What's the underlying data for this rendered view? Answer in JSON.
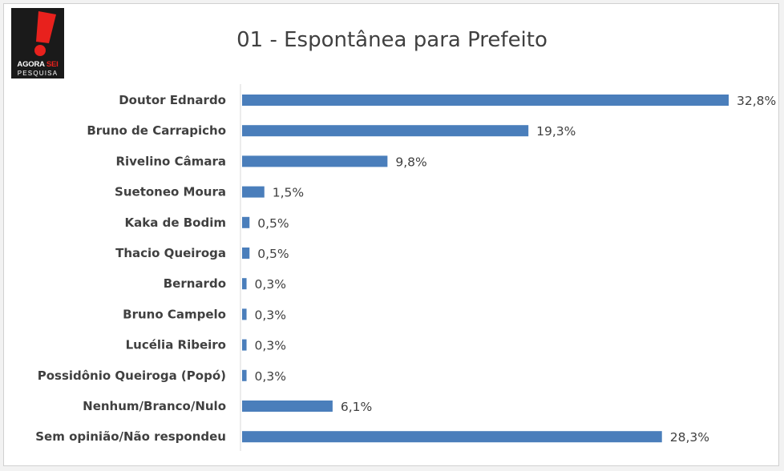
{
  "logo": {
    "text_primary": "AGORA",
    "text_accent": "SEI",
    "text_secondary": "PESQUISA",
    "colors": {
      "background": "#1a1a1a",
      "accent": "#e8211d"
    }
  },
  "chart_data": {
    "type": "bar",
    "orientation": "horizontal",
    "title": "01 - Espontânea para Prefeito",
    "categories": [
      "Doutor Ednardo",
      "Bruno de Carrapicho",
      "Rivelino Câmara",
      "Suetoneo Moura",
      "Kaka de Bodim",
      "Thacio Queiroga",
      "Bernardo",
      "Bruno Campelo",
      "Lucélia Ribeiro",
      "Possidônio Queiroga (Popó)",
      "Nenhum/Branco/Nulo",
      "Sem opinião/Não respondeu"
    ],
    "values": [
      32.8,
      19.3,
      9.8,
      1.5,
      0.5,
      0.5,
      0.3,
      0.3,
      0.3,
      0.3,
      6.1,
      28.3
    ],
    "value_labels": [
      "32,8%",
      "19,3%",
      "9,8%",
      "1,5%",
      "0,5%",
      "0,5%",
      "0,3%",
      "0,3%",
      "0,3%",
      "0,3%",
      "6,1%",
      "28,3%"
    ],
    "xlim": [
      0,
      32.8
    ],
    "grid": false,
    "bar_color": "#4a7ebb",
    "axis_color": "#d9d9d9"
  }
}
